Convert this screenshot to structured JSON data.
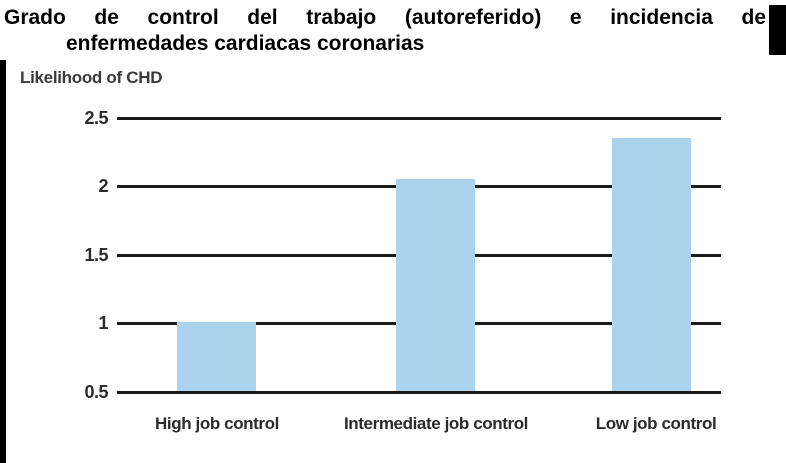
{
  "title": {
    "line1": "Grado de control del trabajo (autoreferido) e incidencia de",
    "line2": "enfermedades cardiacas coronarias"
  },
  "chart_data": {
    "type": "bar",
    "title": "Likelihood of CHD",
    "categories": [
      "High job control",
      "Intermediate job control",
      "Low job control"
    ],
    "values": [
      1.0,
      2.05,
      2.35
    ],
    "xlabel": "",
    "ylabel": "Likelihood of CHD",
    "ylim": [
      0.5,
      2.5
    ],
    "yticks_top_to_bottom": [
      "2.5",
      "2",
      "1.5",
      "1",
      "0.5"
    ],
    "baseline_value": 0.5,
    "grid": true,
    "legend": false,
    "bar_color": "#abd3ee",
    "gridline_color": "#1a1a1a",
    "background_color": "#ffffff",
    "accent_black": "#000000"
  }
}
